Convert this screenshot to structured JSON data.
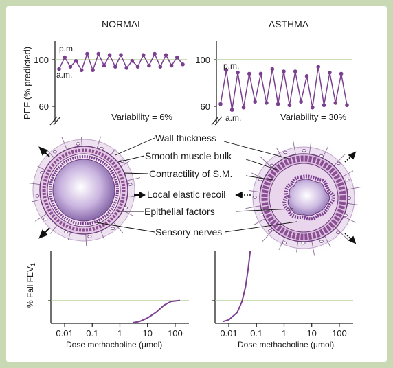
{
  "colors": {
    "frame": "#c9d9b4",
    "panel": "#ffffff",
    "accent": "#7a3f8e",
    "reference_line": "#a9c98c",
    "airway_wall": "#e6cfe6",
    "lumen": "#d7c5e6"
  },
  "pef": {
    "y_axis_label": "PEF (% predicted)",
    "normal": {
      "title": "NORMAL",
      "label_pm": "p.m.",
      "label_am": "a.m.",
      "tick_100": "100",
      "tick_60": "60",
      "variability": "Variability = 6%"
    },
    "asthma": {
      "title": "ASTHMA",
      "label_pm": "p.m.",
      "label_am": "a.m.",
      "tick_100": "100",
      "tick_60": "60",
      "variability": "Variability = 30%"
    }
  },
  "factors": {
    "wall_thickness": "Wall thickness",
    "smooth_muscle_bulk": "Smooth muscle bulk",
    "contractility": "Contractility of S.M.",
    "elastic_recoil": "Local elastic recoil",
    "epithelial_factors": "Epithelial factors",
    "sensory_nerves": "Sensory nerves"
  },
  "dose_response": {
    "y_label": "% Fall FEV",
    "y_label_sub": "1",
    "x_label": "Dose methacholine (μmol)",
    "ticks": [
      "0.01",
      "0.1",
      "1",
      "10",
      "100"
    ]
  },
  "chart_data": [
    {
      "type": "line",
      "title": "NORMAL",
      "ylabel": "PEF (% predicted)",
      "annotations": [
        "p.m.",
        "a.m.",
        "Variability = 6%"
      ],
      "x": [
        1,
        2,
        3,
        4,
        5,
        6,
        7,
        8,
        9,
        10,
        11,
        12,
        13,
        14,
        15,
        16,
        17,
        18,
        19,
        20,
        21,
        22,
        23
      ],
      "values": [
        92,
        102,
        94,
        99,
        91,
        105,
        91,
        105,
        95,
        104,
        94,
        104,
        93,
        99,
        94,
        104,
        95,
        105,
        94,
        104,
        95,
        102,
        96
      ],
      "reference": 100,
      "yticks": [
        60,
        100
      ]
    },
    {
      "type": "line",
      "title": "ASTHMA",
      "ylabel": "PEF (% predicted)",
      "annotations": [
        "p.m.",
        "a.m.",
        "Variability = 30%"
      ],
      "x": [
        1,
        2,
        3,
        4,
        5,
        6,
        7,
        8,
        9,
        10,
        11,
        12,
        13,
        14,
        15,
        16,
        17,
        18,
        19,
        20,
        21,
        22,
        23
      ],
      "values": [
        62,
        91,
        57,
        89,
        59,
        88,
        64,
        88,
        63,
        92,
        62,
        90,
        61,
        90,
        64,
        86,
        59,
        94,
        61,
        89,
        63,
        88,
        61
      ],
      "reference": 100,
      "yticks": [
        60,
        100
      ]
    },
    {
      "type": "line",
      "title": "NORMAL",
      "xlabel": "Dose methacholine (μmol)",
      "ylabel": "% Fall FEV1",
      "xscale": "log",
      "xticks": [
        0.01,
        0.1,
        1,
        10,
        100
      ],
      "x": [
        3,
        5,
        10,
        20,
        40,
        70,
        150
      ],
      "values": [
        0.2,
        0.5,
        1.5,
        3,
        5,
        6,
        6.3
      ],
      "reference": 6.3
    },
    {
      "type": "line",
      "title": "ASTHMA",
      "xlabel": "Dose methacholine (μmol)",
      "ylabel": "% Fall FEV1",
      "xscale": "log",
      "xticks": [
        0.01,
        0.1,
        1,
        10,
        100
      ],
      "x": [
        0.006,
        0.01,
        0.02,
        0.03,
        0.04,
        0.05,
        0.06
      ],
      "values": [
        0.5,
        1,
        3,
        6,
        10,
        15,
        20
      ],
      "reference": 6.3
    }
  ]
}
